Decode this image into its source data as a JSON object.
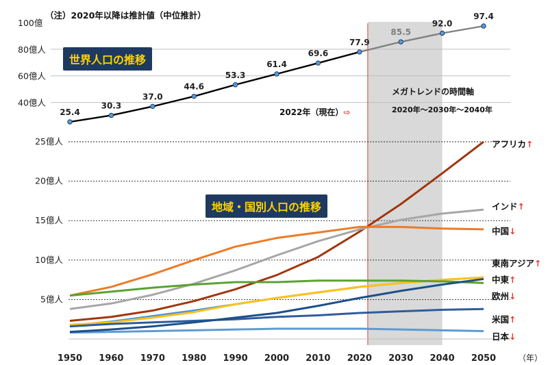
{
  "note": "（注）2020年以降は推計値（中位推計）",
  "world_title": "世界人口の推移",
  "region_title": "地域・国別人口の推移",
  "megatrend": "メガトレンドの時間軸",
  "megatrend_years": "2020年～2030年～2040年",
  "current_label": "2022年（現在）",
  "current_arrow": "⇨",
  "x_axis_unit": "（年）",
  "colors": {
    "world": "#000000",
    "shade": "#d9d9d9",
    "now_line": "#e8392b",
    "up_arrow": "#e8392b",
    "down_arrow": "#e8392b"
  },
  "chart_data": [
    {
      "type": "line",
      "title": "世界人口の推移",
      "x": [
        1950,
        1960,
        1970,
        1980,
        1990,
        2000,
        2010,
        2020,
        2030,
        2040,
        2050
      ],
      "xlim": [
        1950,
        2050
      ],
      "ylim": [
        30,
        100
      ],
      "y_ticks": [
        {
          "value": 100,
          "label": "100億"
        },
        {
          "value": 80,
          "label": "80億人"
        },
        {
          "value": 60,
          "label": "60億人"
        },
        {
          "value": 40,
          "label": "40億人"
        }
      ],
      "series": [
        {
          "values": [
            25.4,
            30.3,
            37.0,
            44.6,
            53.3,
            61.4,
            69.6,
            77.9,
            85.5,
            92.0,
            97.4
          ],
          "labels": [
            "25.4",
            "30.3",
            "37.0",
            "44.6",
            "53.3",
            "61.4",
            "69.6",
            "77.9",
            "85.5",
            "92.0",
            "97.4"
          ]
        }
      ],
      "projection_start": 2020,
      "current_year": 2022,
      "shaded_range": [
        2022,
        2040
      ]
    },
    {
      "type": "line",
      "title": "地域・国別人口の推移",
      "x": [
        1950,
        1960,
        1970,
        1980,
        1990,
        2000,
        2010,
        2020,
        2030,
        2040,
        2050
      ],
      "x_tick_labels": [
        "1950",
        "1960",
        "1970",
        "1980",
        "1990",
        "2000",
        "2010",
        "2020",
        "2030",
        "2040",
        "2050"
      ],
      "xlim": [
        1950,
        2050
      ],
      "ylim": [
        0,
        25
      ],
      "y_ticks": [
        {
          "value": 25,
          "label": "25億人"
        },
        {
          "value": 20,
          "label": "20億人"
        },
        {
          "value": 15,
          "label": "15億人"
        },
        {
          "value": 10,
          "label": "10億人"
        },
        {
          "value": 5,
          "label": "5億人"
        }
      ],
      "grid": true,
      "shaded_range": [
        2022,
        2040
      ],
      "series": [
        {
          "name": "アフリカ",
          "trend": "↑",
          "color": "#a0360d",
          "values": [
            2.3,
            2.8,
            3.6,
            4.8,
            6.3,
            8.1,
            10.4,
            13.6,
            17.1,
            21.0,
            25.0
          ]
        },
        {
          "name": "インド",
          "trend": "↑",
          "color": "#a6a6a6",
          "values": [
            3.8,
            4.5,
            5.6,
            7.0,
            8.7,
            10.6,
            12.4,
            13.9,
            15.1,
            15.9,
            16.4
          ]
        },
        {
          "name": "中国",
          "trend": "↓",
          "color": "#ec7b26",
          "values": [
            5.5,
            6.6,
            8.2,
            10.0,
            11.7,
            12.8,
            13.5,
            14.2,
            14.2,
            14.0,
            13.9
          ]
        },
        {
          "name": "東南アジア",
          "trend": "↑",
          "color": "#4a97d6",
          "values": [
            1.7,
            2.2,
            2.9,
            3.6,
            4.4,
            5.2,
            5.9,
            6.6,
            7.1,
            7.5,
            7.8
          ]
        },
        {
          "name": "中東",
          "trend": "↑",
          "color": "#ffc21a",
          "values": [
            1.8,
            2.1,
            2.7,
            3.4,
            4.4,
            5.2,
            5.9,
            6.6,
            7.1,
            7.5,
            7.8
          ]
        },
        {
          "name": "欧州",
          "trend": "↓",
          "color": "#5aa230",
          "values": [
            5.5,
            6.0,
            6.5,
            6.9,
            7.2,
            7.2,
            7.4,
            7.4,
            7.4,
            7.3,
            7.1
          ]
        },
        {
          "name": "米国",
          "trend": "↑",
          "color": "#2e5c9a",
          "values": [
            1.6,
            1.9,
            2.1,
            2.3,
            2.5,
            2.8,
            3.0,
            3.3,
            3.5,
            3.7,
            3.8
          ]
        },
        {
          "name": "日本",
          "trend": "↓",
          "color": "#5b9bd5",
          "values": [
            0.8,
            0.9,
            1.0,
            1.1,
            1.2,
            1.3,
            1.3,
            1.3,
            1.2,
            1.1,
            1.0
          ]
        },
        {
          "color": "#1b4f8a",
          "values": [
            0.9,
            1.2,
            1.6,
            2.1,
            2.7,
            3.3,
            4.2,
            5.2,
            6.1,
            6.9,
            7.6
          ]
        }
      ]
    }
  ]
}
